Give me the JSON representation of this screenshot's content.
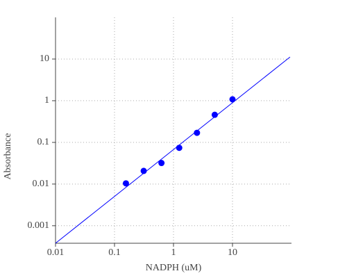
{
  "chart_data": {
    "type": "scatter",
    "x_label": "NADPH (uM)",
    "y_label": "Absorbance",
    "xlog": true,
    "ylog": true,
    "grid": true,
    "xlim": [
      0.01,
      100
    ],
    "ylim": [
      0.00038,
      100
    ],
    "xticks": [
      0.01,
      0.1,
      1,
      10
    ],
    "yticks": [
      0.001,
      0.01,
      0.1,
      1,
      10
    ],
    "series": [
      {
        "mode": "markers",
        "color": "#0000ff",
        "x": [
          0.15625,
          0.3125,
          0.625,
          1.25,
          2.5,
          5,
          10
        ],
        "values": [
          0.0104,
          0.0207,
          0.032,
          0.074,
          0.17,
          0.46,
          1.08
        ]
      },
      {
        "mode": "line",
        "color": "#0000ff",
        "x": [
          0.01,
          94.6
        ],
        "values": [
          0.00038,
          11.2
        ]
      }
    ]
  }
}
